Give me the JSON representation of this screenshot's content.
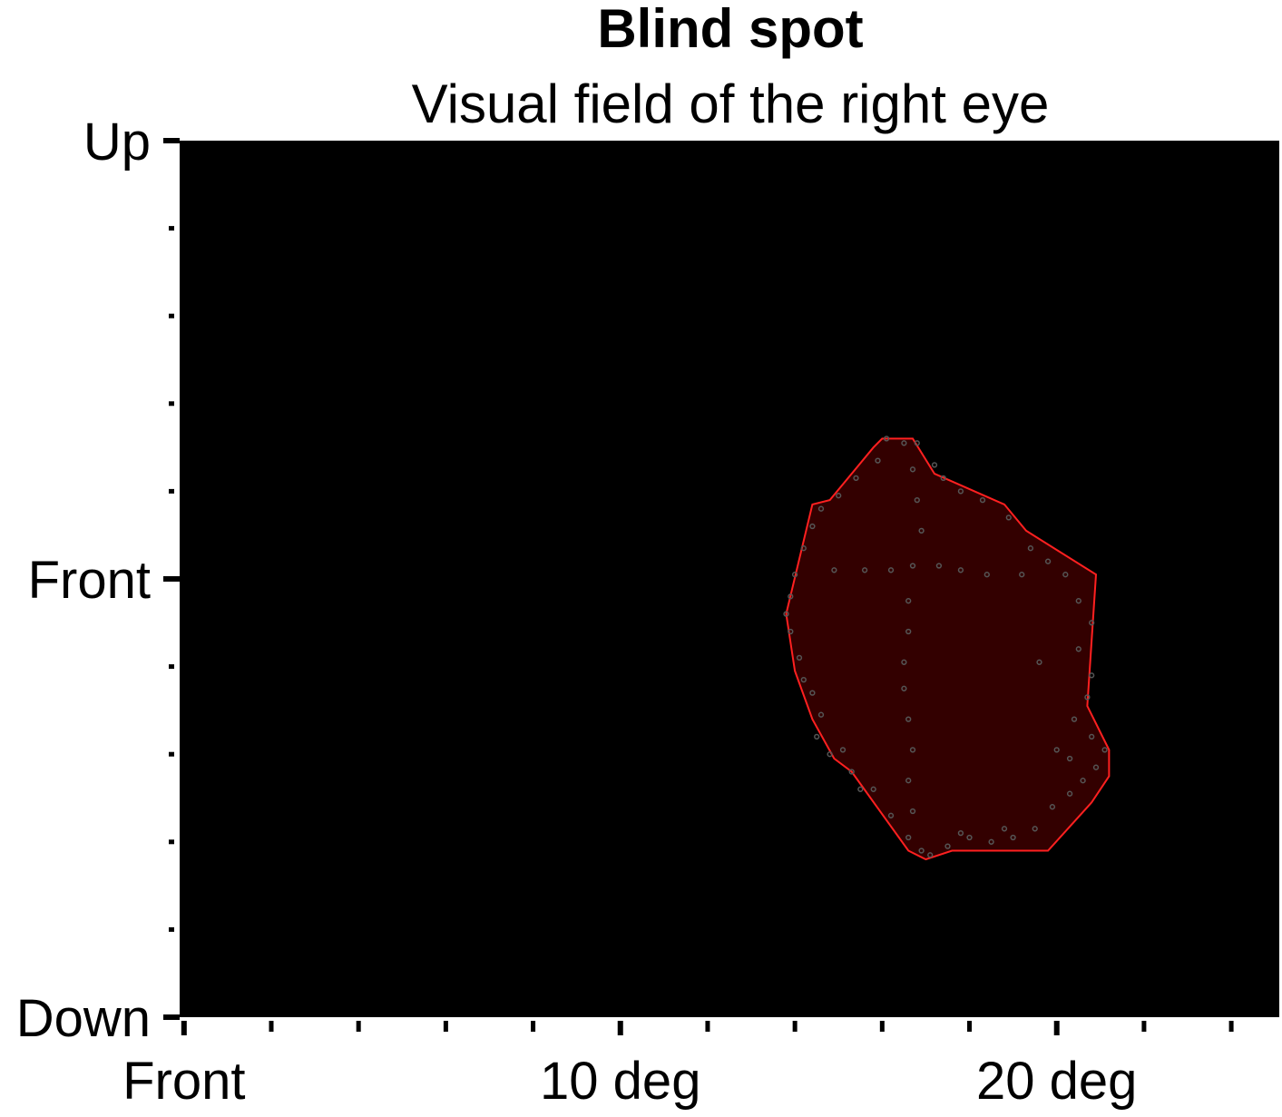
{
  "chart_data": {
    "type": "area",
    "title": "Blind spot",
    "subtitle": "Visual field of the right eye",
    "x_tick_labels": [
      {
        "x": 0,
        "label": "Front"
      },
      {
        "x": 10,
        "label": "10 deg"
      },
      {
        "x": 20,
        "label": "20 deg"
      }
    ],
    "y_tick_labels": [
      {
        "y": 10,
        "label": "Up"
      },
      {
        "y": 0,
        "label": "Front"
      },
      {
        "y": -10,
        "label": "Down"
      }
    ],
    "xlim": [
      -0.1,
      25.1
    ],
    "ylim": [
      -10,
      10
    ],
    "x_minor_step": 2,
    "y_minor_step": 2,
    "background_color": "#000000",
    "region_fill": "#330000",
    "region_stroke": "#ff2020",
    "point_color": "#555555",
    "blind_spot_outline": [
      [
        16.0,
        3.2
      ],
      [
        16.7,
        3.2
      ],
      [
        17.2,
        2.4
      ],
      [
        18.8,
        1.7
      ],
      [
        19.3,
        1.1
      ],
      [
        20.9,
        0.1
      ],
      [
        20.7,
        -2.9
      ],
      [
        21.2,
        -3.9
      ],
      [
        21.2,
        -4.5
      ],
      [
        20.8,
        -5.1
      ],
      [
        19.8,
        -6.2
      ],
      [
        18.5,
        -6.2
      ],
      [
        17.6,
        -6.2
      ],
      [
        17.0,
        -6.4
      ],
      [
        16.6,
        -6.2
      ],
      [
        15.3,
        -4.4
      ],
      [
        14.9,
        -4.1
      ],
      [
        14.4,
        -3.2
      ],
      [
        14.0,
        -2.1
      ],
      [
        13.8,
        -0.8
      ],
      [
        14.4,
        1.7
      ],
      [
        14.8,
        1.8
      ],
      [
        15.8,
        3.0
      ]
    ],
    "probe_points": [
      [
        16.1,
        3.2
      ],
      [
        16.5,
        3.1
      ],
      [
        16.8,
        3.1
      ],
      [
        17.2,
        2.6
      ],
      [
        15.9,
        2.7
      ],
      [
        15.4,
        2.3
      ],
      [
        15.0,
        1.9
      ],
      [
        14.6,
        1.6
      ],
      [
        14.4,
        1.2
      ],
      [
        14.2,
        0.7
      ],
      [
        14.0,
        0.1
      ],
      [
        13.9,
        -0.4
      ],
      [
        13.8,
        -0.8
      ],
      [
        13.9,
        -1.2
      ],
      [
        14.1,
        -1.8
      ],
      [
        14.2,
        -2.3
      ],
      [
        14.4,
        -2.6
      ],
      [
        14.6,
        -3.1
      ],
      [
        14.5,
        -3.6
      ],
      [
        14.8,
        -4.0
      ],
      [
        15.1,
        -3.9
      ],
      [
        15.3,
        -4.4
      ],
      [
        15.8,
        -4.8
      ],
      [
        16.2,
        -5.4
      ],
      [
        16.6,
        -5.9
      ],
      [
        16.9,
        -6.2
      ],
      [
        17.1,
        -6.3
      ],
      [
        17.5,
        -6.1
      ],
      [
        18.0,
        -5.9
      ],
      [
        18.5,
        -6.0
      ],
      [
        19.0,
        -5.9
      ],
      [
        19.5,
        -5.7
      ],
      [
        19.9,
        -5.2
      ],
      [
        20.3,
        -4.9
      ],
      [
        20.6,
        -4.6
      ],
      [
        20.9,
        -4.3
      ],
      [
        21.1,
        -3.9
      ],
      [
        20.8,
        -3.6
      ],
      [
        20.4,
        -3.2
      ],
      [
        20.7,
        -2.7
      ],
      [
        20.8,
        -2.2
      ],
      [
        20.5,
        -1.6
      ],
      [
        20.8,
        -1.0
      ],
      [
        20.5,
        -0.5
      ],
      [
        20.2,
        0.1
      ],
      [
        19.8,
        0.4
      ],
      [
        19.4,
        0.7
      ],
      [
        18.9,
        1.4
      ],
      [
        18.3,
        1.8
      ],
      [
        17.8,
        2.0
      ],
      [
        17.4,
        2.3
      ],
      [
        14.9,
        0.2
      ],
      [
        15.6,
        0.2
      ],
      [
        16.2,
        0.2
      ],
      [
        16.7,
        0.3
      ],
      [
        17.3,
        0.3
      ],
      [
        17.8,
        0.2
      ],
      [
        18.4,
        0.1
      ],
      [
        19.2,
        0.1
      ],
      [
        16.6,
        -0.5
      ],
      [
        16.6,
        -1.2
      ],
      [
        16.5,
        -1.9
      ],
      [
        16.5,
        -2.5
      ],
      [
        16.6,
        -3.2
      ],
      [
        16.7,
        -3.9
      ],
      [
        16.6,
        -4.6
      ],
      [
        16.7,
        -5.3
      ],
      [
        16.9,
        1.1
      ],
      [
        16.8,
        1.8
      ],
      [
        16.7,
        2.5
      ],
      [
        20.0,
        -3.9
      ],
      [
        20.3,
        -4.1
      ],
      [
        19.6,
        -1.9
      ],
      [
        15.5,
        -4.8
      ],
      [
        17.8,
        -5.8
      ],
      [
        18.8,
        -5.7
      ]
    ]
  }
}
